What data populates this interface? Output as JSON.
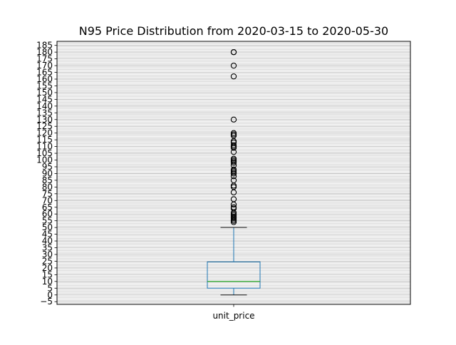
{
  "chart_data": {
    "type": "box",
    "title": "N95 Price Distribution from 2020-03-15 to 2020-05-30",
    "xlabel": "",
    "ylabel": "",
    "categories": [
      "unit_price"
    ],
    "ylim": [
      -7,
      188
    ],
    "y_ticks": [
      -5,
      0,
      5,
      10,
      15,
      20,
      25,
      30,
      35,
      40,
      45,
      50,
      55,
      60,
      65,
      70,
      75,
      80,
      85,
      90,
      95,
      100,
      105,
      110,
      115,
      120,
      125,
      130,
      135,
      140,
      145,
      150,
      155,
      160,
      165,
      170,
      175,
      180,
      185
    ],
    "y_tick_labels": [
      "−5",
      "0",
      "5",
      "10",
      "15",
      "20",
      "25",
      "30",
      "35",
      "40",
      "45",
      "50",
      "55",
      "60",
      "65",
      "70",
      "75",
      "80",
      "85",
      "90",
      "95",
      "100",
      "105",
      "110",
      "115",
      "120",
      "125",
      "130",
      "135",
      "140",
      "145",
      "150",
      "155",
      "160",
      "165",
      "170",
      "175",
      "180",
      "185"
    ],
    "grid": {
      "y_major": true,
      "y_minor": true
    },
    "box": {
      "whisker_low": 0,
      "q1": 5,
      "median": 10,
      "q3": 24.5,
      "whisker_high": 50
    },
    "outliers": [
      180,
      180,
      170,
      162,
      130,
      120,
      119,
      118,
      114,
      113,
      111,
      110,
      109,
      106,
      101,
      100,
      99,
      98,
      96,
      93,
      92,
      91,
      90,
      88,
      85,
      81,
      80,
      76,
      71,
      67,
      65,
      64,
      61,
      60,
      59,
      58,
      57,
      56,
      55,
      54
    ],
    "colors": {
      "box": "#1f77b4",
      "median": "#2ca02c",
      "whisker": "#000000",
      "outlier": "#000000",
      "grid": "#b0b0b0"
    }
  }
}
